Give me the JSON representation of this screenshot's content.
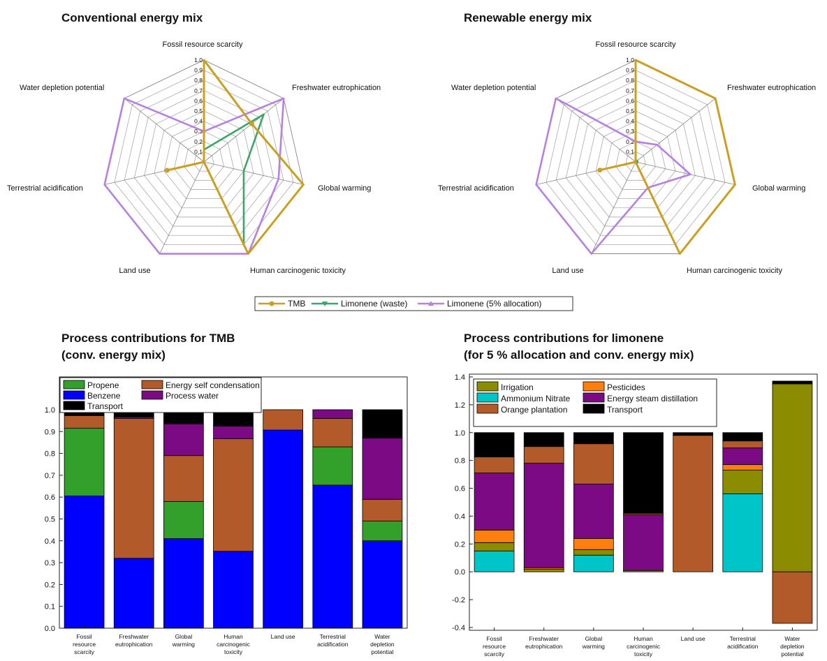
{
  "legend_radar": [
    "TMB",
    "Limonene (waste)",
    "Limonene (5% allocation)"
  ],
  "colors": {
    "TMB": "#c9a022",
    "Limonene (waste)": "#3aa66a",
    "Limonene (5% allocation)": "#b681e0",
    "Propene": "#33a02c",
    "Energy self condensation": "#b35a2a",
    "Benzene": "#0000ff",
    "Process water": "#7b0a84",
    "Transport": "#000000",
    "Irrigation": "#8c8c00",
    "Pesticides": "#ff7f0e",
    "Ammonium Nitrate": "#00c5c8",
    "Energy steam distillation": "#7b0a84",
    "Orange plantation": "#b35a2a"
  },
  "chart_data": [
    {
      "type": "radar",
      "title": "Conventional energy mix",
      "axes": [
        "Fossil resource scarcity",
        "Freshwater eutrophication",
        "Global warming",
        "Human carcinogenic toxicity",
        "Land use",
        "Terrestrial acidification",
        "Water depletion potential"
      ],
      "ticks": [
        "0.1",
        "0.2",
        "0.3",
        "0.4",
        "0.5",
        "0.6",
        "0.7",
        "0.8",
        "0.9",
        "1.0"
      ],
      "range": [
        0,
        1
      ],
      "series": [
        {
          "name": "TMB",
          "values": [
            1.0,
            0.6,
            1.0,
            1.0,
            0.0,
            0.37,
            0.0
          ]
        },
        {
          "name": "Limonene (waste)",
          "values": [
            0.12,
            0.75,
            0.4,
            0.9,
            0.0,
            0.04,
            0.0
          ]
        },
        {
          "name": "Limonene (5% allocation)",
          "values": [
            0.3,
            1.0,
            0.75,
            1.0,
            1.0,
            1.0,
            1.0
          ]
        }
      ]
    },
    {
      "type": "radar",
      "title": "Renewable energy mix",
      "axes": [
        "Fossil resource scarcity",
        "Freshwater eutrophication",
        "Global warming",
        "Human carcinogenic toxicity",
        "Land use",
        "Terrestrial acidification",
        "Water depletion potential"
      ],
      "ticks": [
        "0.1",
        "0.2",
        "0.3",
        "0.4",
        "0.5",
        "0.6",
        "0.7",
        "0.8",
        "0.9",
        "1.0"
      ],
      "range": [
        0,
        1
      ],
      "series": [
        {
          "name": "TMB",
          "values": [
            1.0,
            1.0,
            1.0,
            1.0,
            0.0,
            0.36,
            0.0
          ]
        },
        {
          "name": "Limonene (waste)",
          "values": [
            0.02,
            0.02,
            0.02,
            0.02,
            0.0,
            0.02,
            0.0
          ]
        },
        {
          "name": "Limonene (5% allocation)",
          "values": [
            0.2,
            0.27,
            0.55,
            0.28,
            1.0,
            1.0,
            1.0
          ]
        }
      ]
    },
    {
      "type": "bar",
      "stacked": true,
      "title": "Process contributions for TMB",
      "subtitle": "(conv. energy mix)",
      "categories": [
        "Fossil resource scarcity",
        "Freshwater eutrophication",
        "Global warming",
        "Human carcinogenic toxicity",
        "Land use",
        "Terrestrial acidification",
        "Water depletion potential"
      ],
      "category_lines": [
        [
          "Fossil",
          "resource",
          "scarcity"
        ],
        [
          "Freshwater",
          "eutrophication"
        ],
        [
          "Global",
          "warming"
        ],
        [
          "Human",
          "carcinogenic",
          "toxicity"
        ],
        [
          "Land use"
        ],
        [
          "Terrestrial",
          "acidification"
        ],
        [
          "Water",
          "depletion",
          "potential"
        ]
      ],
      "ylim": [
        0,
        1.15
      ],
      "yticks": [
        "0.0",
        "0.1",
        "0.2",
        "0.3",
        "0.4",
        "0.5",
        "0.6",
        "0.7",
        "0.8",
        "0.9",
        "1.0"
      ],
      "legend": [
        "Propene",
        "Energy self condensation",
        "Benzene",
        "Process water",
        "Transport"
      ],
      "series": [
        {
          "name": "Benzene",
          "values": [
            0.605,
            0.32,
            0.41,
            0.352,
            0.907,
            0.655,
            0.4
          ]
        },
        {
          "name": "Propene",
          "values": [
            0.31,
            0.0,
            0.17,
            0.0,
            0.0,
            0.175,
            0.09
          ]
        },
        {
          "name": "Energy self condensation",
          "values": [
            0.058,
            0.64,
            0.21,
            0.515,
            0.093,
            0.13,
            0.1
          ]
        },
        {
          "name": "Process water",
          "values": [
            0.0,
            0.007,
            0.145,
            0.058,
            0.0,
            0.04,
            0.28
          ]
        },
        {
          "name": "Transport",
          "values": [
            0.027,
            0.033,
            0.065,
            0.075,
            0.0,
            0.0,
            0.13
          ]
        }
      ]
    },
    {
      "type": "bar",
      "stacked": true,
      "title": "Process contributions for limonene",
      "subtitle": "(for 5 % allocation and conv. energy mix)",
      "categories": [
        "Fossil resource scarcity",
        "Freshwater eutrophication",
        "Global warming",
        "Human carcinogenic toxicity",
        "Land use",
        "Terrestrial acidification",
        "Water depletion potential"
      ],
      "category_lines": [
        [
          "Fossil",
          "resource",
          "scarcity"
        ],
        [
          "Freshwater",
          "eutrophication"
        ],
        [
          "Global",
          "warming"
        ],
        [
          "Human",
          "carcinogenic",
          "toxicity"
        ],
        [
          "Land use"
        ],
        [
          "Terrestrial",
          "acidification"
        ],
        [
          "Water",
          "depletion",
          "potential"
        ]
      ],
      "ylim": [
        -0.42,
        1.42
      ],
      "yticks": [
        "-0.4",
        "-0.2",
        "0.0",
        "0.2",
        "0.4",
        "0.6",
        "0.8",
        "1.0",
        "1.2",
        "1.4"
      ],
      "legend": [
        "Irrigation",
        "Pesticides",
        "Ammonium Nitrate",
        "Energy steam distillation",
        "Orange plantation",
        "Transport"
      ],
      "series": [
        {
          "name": "Ammonium Nitrate",
          "values": [
            0.15,
            0.0,
            0.12,
            0.0,
            0.0,
            0.56,
            0.0
          ]
        },
        {
          "name": "Irrigation",
          "values": [
            0.06,
            0.02,
            0.04,
            0.01,
            0.0,
            0.17,
            1.35
          ]
        },
        {
          "name": "Pesticides",
          "values": [
            0.09,
            0.01,
            0.08,
            0.0,
            0.0,
            0.04,
            0.0
          ]
        },
        {
          "name": "Energy steam distillation",
          "values": [
            0.41,
            0.75,
            0.39,
            0.4,
            0.0,
            0.12,
            0.0
          ]
        },
        {
          "name": "Orange plantation",
          "values": [
            0.115,
            0.12,
            0.29,
            0.01,
            0.98,
            0.05,
            -0.37
          ]
        },
        {
          "name": "Transport",
          "values": [
            0.175,
            0.1,
            0.08,
            0.58,
            0.02,
            0.06,
            0.02
          ]
        }
      ]
    }
  ]
}
